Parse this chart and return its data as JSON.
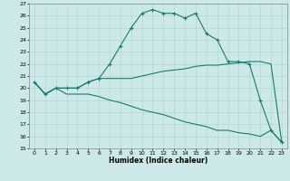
{
  "title": "",
  "xlabel": "Humidex (Indice chaleur)",
  "xlim": [
    -0.5,
    23.5
  ],
  "ylim": [
    15,
    27
  ],
  "xticks": [
    0,
    1,
    2,
    3,
    4,
    5,
    6,
    7,
    8,
    9,
    10,
    11,
    12,
    13,
    14,
    15,
    16,
    17,
    18,
    19,
    20,
    21,
    22,
    23
  ],
  "yticks": [
    15,
    16,
    17,
    18,
    19,
    20,
    21,
    22,
    23,
    24,
    25,
    26,
    27
  ],
  "bg_color": "#cce8e8",
  "line_color": "#1a7a6e",
  "line1_x": [
    0,
    1,
    2,
    3,
    4,
    5,
    6,
    7,
    8,
    9,
    10,
    11,
    12,
    13,
    14,
    15,
    16,
    17,
    18,
    19,
    20,
    21,
    22,
    23
  ],
  "line1_y": [
    20.5,
    19.5,
    20.0,
    20.0,
    20.0,
    20.5,
    20.8,
    22.0,
    23.5,
    25.0,
    26.2,
    26.5,
    26.2,
    26.2,
    25.8,
    26.2,
    24.5,
    24.0,
    22.2,
    22.2,
    22.0,
    19.0,
    16.5,
    15.5
  ],
  "line2_x": [
    0,
    1,
    2,
    3,
    4,
    5,
    6,
    7,
    8,
    9,
    10,
    11,
    12,
    13,
    14,
    15,
    16,
    17,
    18,
    19,
    20,
    21,
    22,
    23
  ],
  "line2_y": [
    20.5,
    19.5,
    20.0,
    20.0,
    20.0,
    20.5,
    20.8,
    20.8,
    20.8,
    20.8,
    21.0,
    21.2,
    21.4,
    21.5,
    21.6,
    21.8,
    21.9,
    21.9,
    22.0,
    22.1,
    22.2,
    22.2,
    22.0,
    15.5
  ],
  "line3_x": [
    0,
    1,
    2,
    3,
    4,
    5,
    6,
    7,
    8,
    9,
    10,
    11,
    12,
    13,
    14,
    15,
    16,
    17,
    18,
    19,
    20,
    21,
    22,
    23
  ],
  "line3_y": [
    20.5,
    19.5,
    20.0,
    19.5,
    19.5,
    19.5,
    19.3,
    19.0,
    18.8,
    18.5,
    18.2,
    18.0,
    17.8,
    17.5,
    17.2,
    17.0,
    16.8,
    16.5,
    16.5,
    16.3,
    16.2,
    16.0,
    16.5,
    15.5
  ],
  "tick_fontsize": 4.5,
  "xlabel_fontsize": 5.5,
  "grid_color": "#aed4d4",
  "spine_color": "#888888"
}
